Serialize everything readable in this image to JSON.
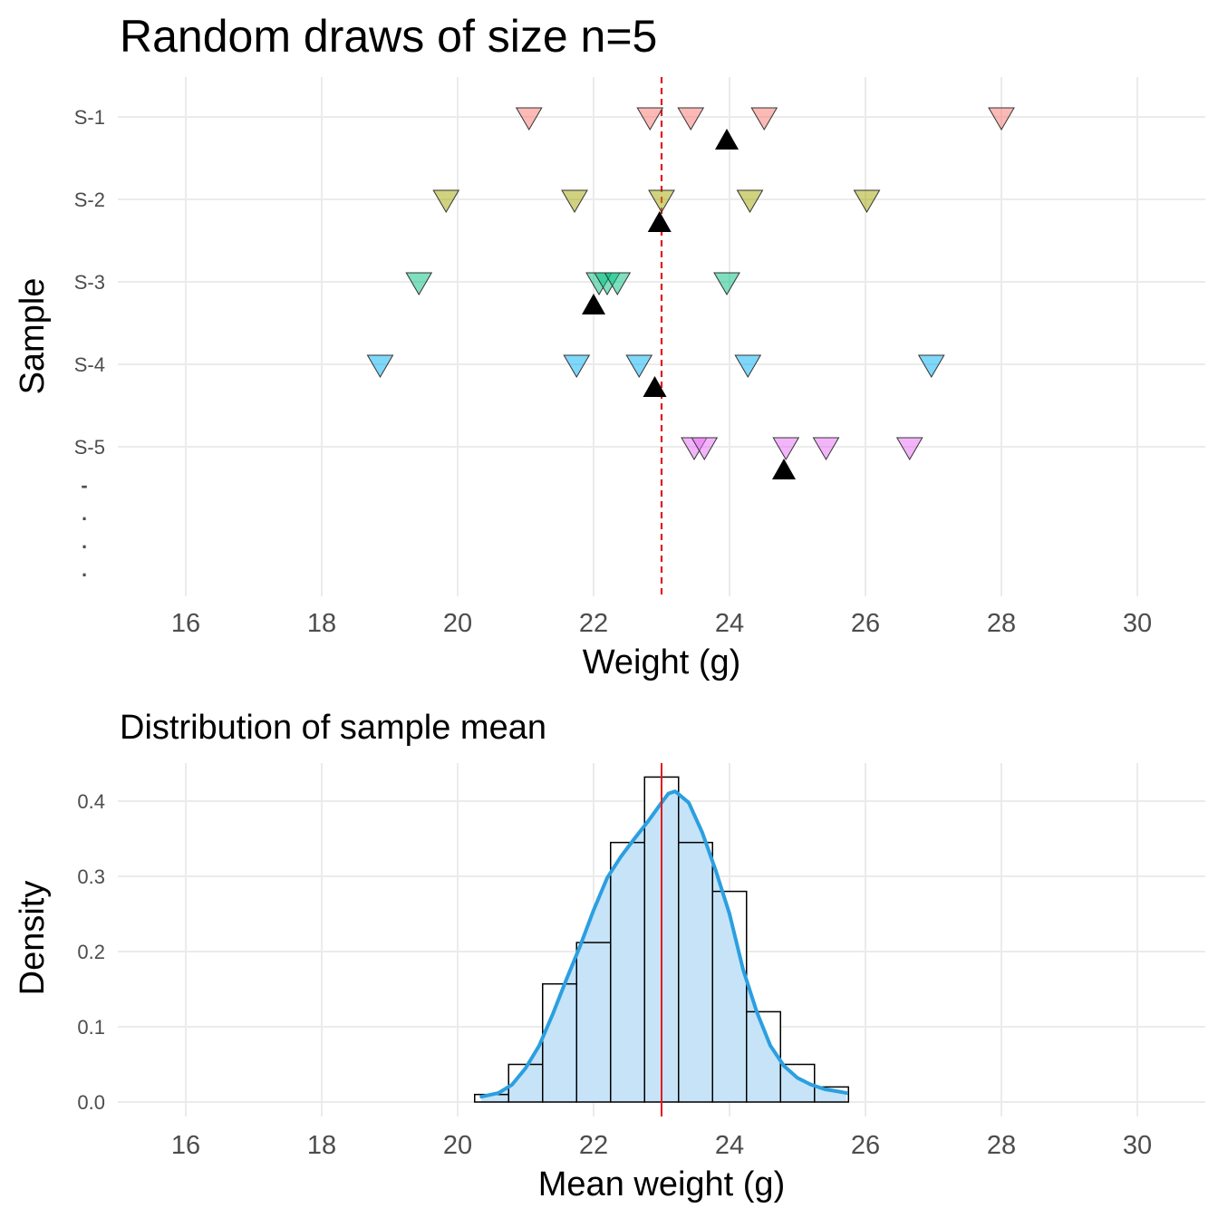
{
  "chart_data": [
    {
      "type": "scatter",
      "title": "Random draws of size n=5",
      "xlabel": "Weight (g)",
      "ylabel": "Sample",
      "xlim": [
        15,
        31
      ],
      "x_ticks": [
        16,
        18,
        20,
        22,
        24,
        26,
        28,
        30
      ],
      "y_categories": [
        "S-1",
        "S-2",
        "S-3",
        "S-4",
        "S-5"
      ],
      "y_ellipsis": [
        "-",
        ".",
        ".",
        "."
      ],
      "reference_line": {
        "x": 23,
        "style": "dashed",
        "color": "#e41a1c"
      },
      "mean_marker_color": "#000000",
      "grid": true,
      "legend": "none",
      "series": [
        {
          "sample": "S-1",
          "color": "#f8766d",
          "values": [
            21.05,
            22.83,
            23.43,
            24.51,
            28.0
          ],
          "mean": 23.96
        },
        {
          "sample": "S-2",
          "color": "#a3a500",
          "values": [
            19.83,
            21.72,
            23.0,
            24.3,
            26.02
          ],
          "mean": 22.97
        },
        {
          "sample": "S-3",
          "color": "#00bf7d",
          "values": [
            19.43,
            22.08,
            22.2,
            22.35,
            23.96
          ],
          "mean": 22.0
        },
        {
          "sample": "S-4",
          "color": "#00b0f6",
          "values": [
            18.86,
            21.75,
            22.67,
            24.27,
            26.97
          ],
          "mean": 22.9
        },
        {
          "sample": "S-5",
          "color": "#e76bf3",
          "values": [
            23.48,
            23.63,
            24.83,
            25.42,
            26.65
          ],
          "mean": 24.8
        }
      ]
    },
    {
      "type": "bar",
      "title": "Distribution of sample mean",
      "xlabel": "Mean weight (g)",
      "ylabel": "Density",
      "xlim": [
        15,
        31
      ],
      "ylim": [
        0,
        0.45
      ],
      "x_ticks": [
        16,
        18,
        20,
        22,
        24,
        26,
        28,
        30
      ],
      "y_ticks": [
        "0.0",
        "0.1",
        "0.2",
        "0.3",
        "0.4"
      ],
      "bin_width": 0.5,
      "bins": [
        {
          "x0": 20.25,
          "x1": 20.75,
          "density": 0.01
        },
        {
          "x0": 20.75,
          "x1": 21.25,
          "density": 0.05
        },
        {
          "x0": 21.25,
          "x1": 21.75,
          "density": 0.157
        },
        {
          "x0": 21.75,
          "x1": 22.25,
          "density": 0.212
        },
        {
          "x0": 22.25,
          "x1": 22.75,
          "density": 0.345
        },
        {
          "x0": 22.75,
          "x1": 23.25,
          "density": 0.432
        },
        {
          "x0": 23.25,
          "x1": 23.75,
          "density": 0.345
        },
        {
          "x0": 23.75,
          "x1": 24.25,
          "density": 0.28
        },
        {
          "x0": 24.25,
          "x1": 24.75,
          "density": 0.12
        },
        {
          "x0": 24.75,
          "x1": 25.25,
          "density": 0.05
        },
        {
          "x0": 25.25,
          "x1": 25.75,
          "density": 0.02
        }
      ],
      "density_curve": {
        "color": "#2b9fe0",
        "x": [
          20.35,
          20.6,
          20.8,
          21.0,
          21.2,
          21.4,
          21.6,
          21.8,
          22.0,
          22.2,
          22.4,
          22.6,
          22.8,
          23.0,
          23.1,
          23.2,
          23.4,
          23.6,
          23.8,
          24.0,
          24.2,
          24.4,
          24.6,
          24.8,
          25.0,
          25.2,
          25.4,
          25.6,
          25.72
        ],
        "y": [
          0.007,
          0.012,
          0.023,
          0.045,
          0.075,
          0.117,
          0.163,
          0.207,
          0.255,
          0.298,
          0.326,
          0.35,
          0.373,
          0.398,
          0.41,
          0.413,
          0.398,
          0.358,
          0.307,
          0.25,
          0.176,
          0.12,
          0.075,
          0.048,
          0.032,
          0.023,
          0.017,
          0.014,
          0.012
        ]
      },
      "fill_color": "#c6e3f7",
      "reference_line": {
        "x": 23,
        "style": "solid",
        "color": "#e41a1c"
      },
      "grid": true,
      "legend": "none"
    }
  ]
}
